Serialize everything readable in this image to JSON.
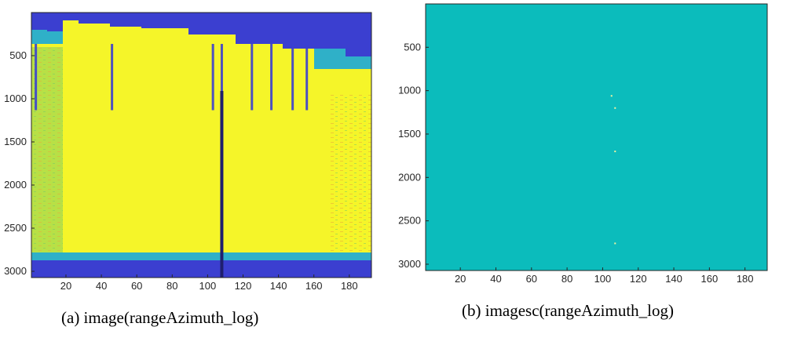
{
  "chart_data": [
    {
      "type": "heatmap",
      "subtype": "image",
      "caption": "(a) image(rangeAzimuth_log)",
      "x_ticks": [
        20,
        40,
        60,
        80,
        100,
        120,
        140,
        160,
        180
      ],
      "y_ticks": [
        500,
        1000,
        1500,
        2000,
        2500,
        3000
      ],
      "xlim": [
        0.5,
        192.5
      ],
      "ylim": [
        0.5,
        3072.5
      ],
      "y_direction": "reverse",
      "colors": {
        "saturated": "#f5f529",
        "low": "#3b3fd0",
        "mid": "#2fb0c8",
        "green": "#6fc86a",
        "orange": "#e6a83a",
        "dark": "#1f1f6e"
      },
      "regions": [
        {
          "label": "low-values-top",
          "y": [
            0,
            200
          ],
          "color": "low"
        },
        {
          "label": "saturated-body",
          "y": [
            200,
            2820
          ],
          "color": "saturated"
        },
        {
          "label": "low-values-bottom",
          "y": [
            2820,
            3072
          ],
          "color": "low"
        }
      ],
      "streak_columns": [
        3,
        46,
        103,
        108,
        125,
        136,
        148,
        156
      ]
    },
    {
      "type": "heatmap",
      "subtype": "imagesc",
      "caption": "(b) imagesc(rangeAzimuth_log)",
      "x_ticks": [
        20,
        40,
        60,
        80,
        100,
        120,
        140,
        160,
        180
      ],
      "y_ticks": [
        500,
        1000,
        1500,
        2000,
        2500,
        3000
      ],
      "xlim": [
        0.5,
        192.5
      ],
      "ylim": [
        0.5,
        3072.5
      ],
      "y_direction": "reverse",
      "colors": {
        "uniform": "#0bbcbc",
        "outlier": "#f2f2a0"
      },
      "outliers": [
        {
          "x": 105,
          "y": 1060
        },
        {
          "x": 107,
          "y": 1200
        },
        {
          "x": 107,
          "y": 1700
        },
        {
          "x": 107,
          "y": 2760
        }
      ]
    }
  ]
}
